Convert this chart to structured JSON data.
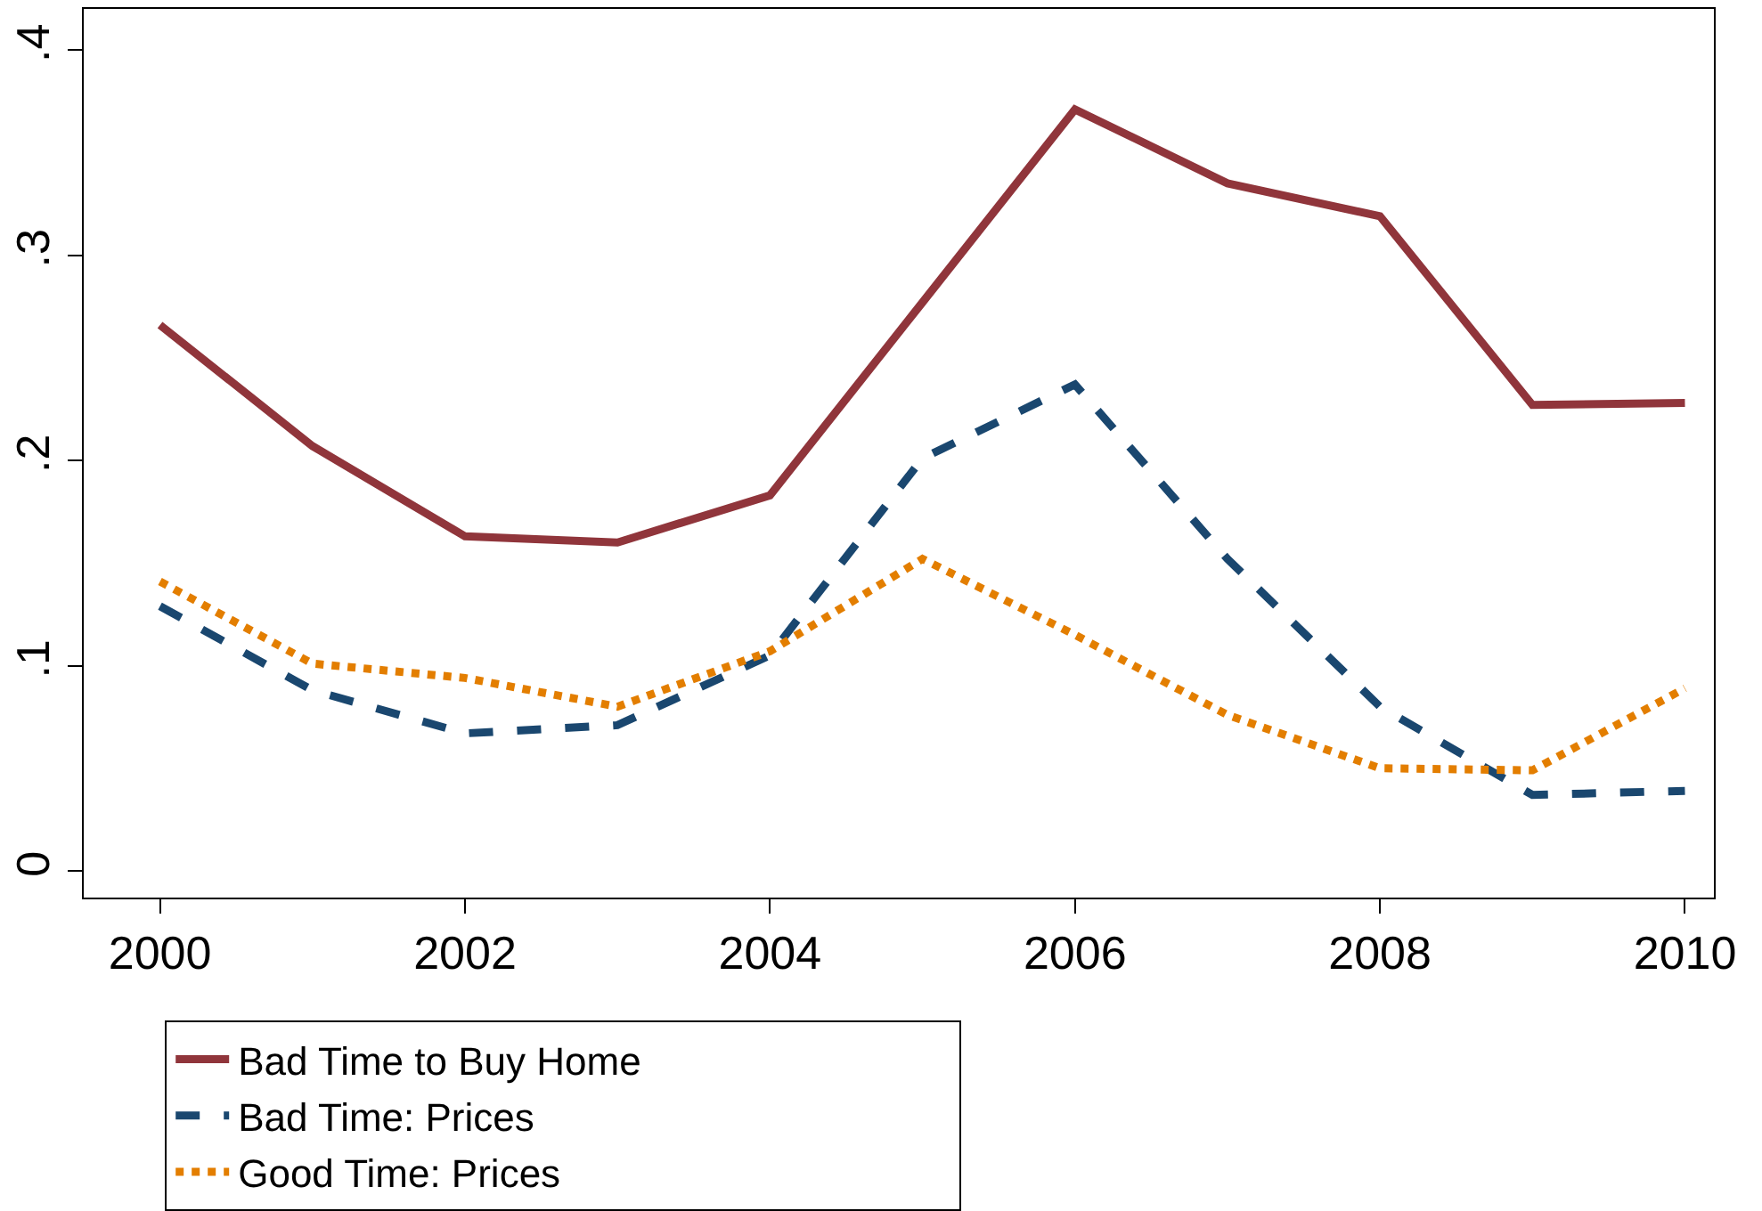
{
  "chart_data": {
    "type": "line",
    "x": [
      2000,
      2001,
      2002,
      2003,
      2004,
      2005,
      2006,
      2007,
      2008,
      2009,
      2010
    ],
    "series": [
      {
        "name": "Bad Time to Buy Home",
        "color": "#90353b",
        "line_style": "solid",
        "values": [
          0.266,
          0.207,
          0.163,
          0.16,
          0.183,
          0.277,
          0.371,
          0.335,
          0.319,
          0.227,
          0.228
        ]
      },
      {
        "name": "Bad Time: Prices",
        "color": "#1a476f",
        "line_style": "dashed",
        "values": [
          0.129,
          0.088,
          0.067,
          0.071,
          0.105,
          0.201,
          0.237,
          0.152,
          0.08,
          0.037,
          0.039
        ]
      },
      {
        "name": "Good Time: Prices",
        "color": "#e37e00",
        "line_style": "dotted",
        "values": [
          0.141,
          0.101,
          0.094,
          0.08,
          0.107,
          0.152,
          0.115,
          0.076,
          0.05,
          0.049,
          0.089
        ]
      }
    ],
    "xlim": [
      1999.5,
      2010.19
    ],
    "xticks": [
      2000,
      2002,
      2004,
      2006,
      2008,
      2010
    ],
    "ylim": [
      -0.013,
      0.42
    ],
    "yticks": [
      {
        "value": 0,
        "label": "0"
      },
      {
        "value": 0.1,
        "label": ".1"
      },
      {
        "value": 0.2,
        "label": ".2"
      },
      {
        "value": 0.3,
        "label": ".3"
      },
      {
        "value": 0.4,
        "label": ".4"
      }
    ],
    "legend": "bottom",
    "marker": "none"
  }
}
